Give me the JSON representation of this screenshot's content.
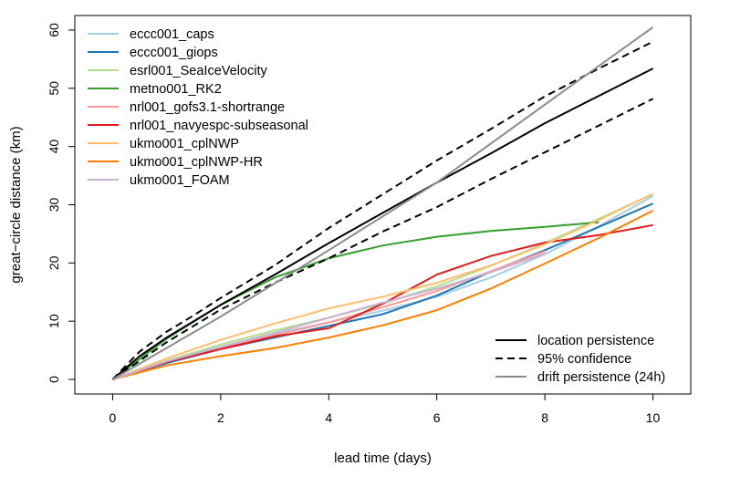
{
  "chart_data": {
    "type": "line",
    "xlabel": "lead time (days)",
    "ylabel": "great−circle distance (km)",
    "xlim": [
      -0.7,
      10.7
    ],
    "ylim": [
      -2.5,
      62.5
    ],
    "x_ticks": [
      0,
      2,
      4,
      6,
      8,
      10
    ],
    "y_ticks": [
      0,
      10,
      20,
      30,
      40,
      50,
      60
    ],
    "grid": false,
    "legend_top": {
      "placement": "top-left",
      "entries": [
        "eccc001_caps",
        "eccc001_giops",
        "esrl001_SeaIceVelocity",
        "metno001_RK2",
        "nrl001_gofs3.1-shortrange",
        "nrl001_navyespc-subseasonal",
        "ukmo001_cplNWP",
        "ukmo001_cplNWP-HR",
        "ukmo001_FOAM"
      ]
    },
    "legend_bottom": {
      "placement": "bottom-right",
      "entries": [
        "location persistence",
        "95% confidence",
        "drift persistence (24h)"
      ]
    },
    "series": [
      {
        "name": "eccc001_caps",
        "color": "#a6cee3",
        "dash": "solid",
        "x": [
          0,
          1,
          2,
          3,
          4,
          5,
          6,
          7,
          8,
          9,
          10
        ],
        "y": [
          0,
          3.0,
          5.6,
          7.8,
          9.8,
          11.8,
          14.2,
          17.5,
          21.5,
          26.3,
          31.5
        ]
      },
      {
        "name": "eccc001_giops",
        "color": "#1f78b4",
        "dash": "solid",
        "x": [
          0,
          1,
          2,
          3,
          4,
          5,
          6,
          7,
          8,
          9,
          10
        ],
        "y": [
          0,
          2.8,
          5.2,
          7.2,
          9.2,
          11.2,
          14.4,
          18.5,
          22.2,
          26.2,
          30.2
        ]
      },
      {
        "name": "esrl001_SeaIceVelocity",
        "color": "#b2df8a",
        "dash": "solid",
        "x": [
          0,
          1,
          2,
          3,
          4,
          5,
          6,
          7,
          8,
          9,
          10
        ],
        "y": [
          0,
          3.2,
          6.0,
          8.4,
          10.6,
          13.0,
          16.0,
          19.5,
          23.4,
          27.6,
          31.8
        ]
      },
      {
        "name": "metno001_RK2",
        "color": "#33a02c",
        "dash": "solid",
        "x": [
          0,
          1,
          2,
          3,
          4,
          5,
          6,
          7,
          8,
          9
        ],
        "y": [
          0,
          7.0,
          12.8,
          17.5,
          20.8,
          23.0,
          24.5,
          25.5,
          26.2,
          27.0
        ]
      },
      {
        "name": "nrl001_gofs3.1-shortrange",
        "color": "#fb9a99",
        "dash": "solid",
        "x": [
          0,
          1,
          2,
          3,
          4,
          5,
          6,
          7,
          8
        ],
        "y": [
          0,
          3.0,
          5.4,
          7.6,
          9.8,
          12.4,
          15.2,
          18.6,
          22.0
        ]
      },
      {
        "name": "nrl001_navyespc-subseasonal",
        "color": "#e31a1c",
        "dash": "solid",
        "x": [
          0,
          1,
          2,
          3,
          4,
          5,
          6,
          7,
          8,
          9,
          10
        ],
        "y": [
          0,
          3.0,
          5.2,
          7.4,
          8.8,
          13.0,
          18.0,
          21.2,
          23.5,
          24.8,
          26.5
        ]
      },
      {
        "name": "ukmo001_cplNWP",
        "color": "#fdbf6f",
        "dash": "solid",
        "x": [
          0,
          1,
          2,
          3,
          4,
          5,
          6,
          7,
          8,
          9,
          10
        ],
        "y": [
          0,
          3.6,
          6.8,
          9.6,
          12.2,
          14.2,
          16.6,
          19.6,
          23.2,
          27.4,
          31.9
        ]
      },
      {
        "name": "ukmo001_cplNWP-HR",
        "color": "#ff7f00",
        "dash": "solid",
        "x": [
          0,
          1,
          2,
          3,
          4,
          5,
          6,
          7,
          8,
          9,
          10
        ],
        "y": [
          0,
          2.4,
          4.0,
          5.4,
          7.2,
          9.3,
          11.9,
          15.6,
          19.9,
          24.3,
          29.0
        ]
      },
      {
        "name": "ukmo001_FOAM",
        "color": "#cab2d6",
        "dash": "solid",
        "x": [
          0,
          1,
          2,
          3,
          4,
          5,
          6,
          7,
          8
        ],
        "y": [
          0,
          3.1,
          5.6,
          8.0,
          10.6,
          13.2,
          15.6,
          18.4,
          21.6
        ]
      },
      {
        "name": "location persistence",
        "color": "#000000",
        "dash": "solid",
        "x": [
          0,
          0.5,
          1,
          1.5,
          2,
          3,
          4,
          5,
          6,
          7,
          8,
          9,
          10
        ],
        "y": [
          0,
          4.0,
          7.2,
          10.0,
          12.8,
          18.0,
          23.4,
          28.6,
          33.8,
          38.8,
          44.0,
          48.7,
          53.4
        ]
      },
      {
        "name": "95% confidence",
        "color": "#000000",
        "dash": "dashed",
        "x": [
          0,
          0.5,
          1,
          1.5,
          2,
          3,
          4,
          5,
          6,
          7,
          8,
          9,
          10
        ],
        "y": [
          0,
          4.8,
          8.2,
          11.0,
          14.0,
          19.6,
          26.0,
          31.8,
          37.6,
          43.0,
          48.6,
          53.4,
          58.0
        ]
      },
      {
        "name": "95% confidence",
        "color": "#000000",
        "dash": "dashed",
        "x": [
          0,
          0.5,
          1,
          1.5,
          2,
          3,
          4,
          5,
          6,
          7,
          8,
          9,
          10
        ],
        "y": [
          0,
          3.2,
          6.4,
          9.2,
          12.0,
          16.6,
          20.8,
          25.4,
          29.6,
          34.4,
          39.0,
          43.6,
          48.2
        ]
      },
      {
        "name": "drift persistence (24h)",
        "color": "#8c8c8c",
        "dash": "solid",
        "x": [
          0,
          2,
          4,
          6,
          8,
          10
        ],
        "y": [
          0,
          10.8,
          22.2,
          33.8,
          47.2,
          60.5
        ]
      }
    ]
  }
}
